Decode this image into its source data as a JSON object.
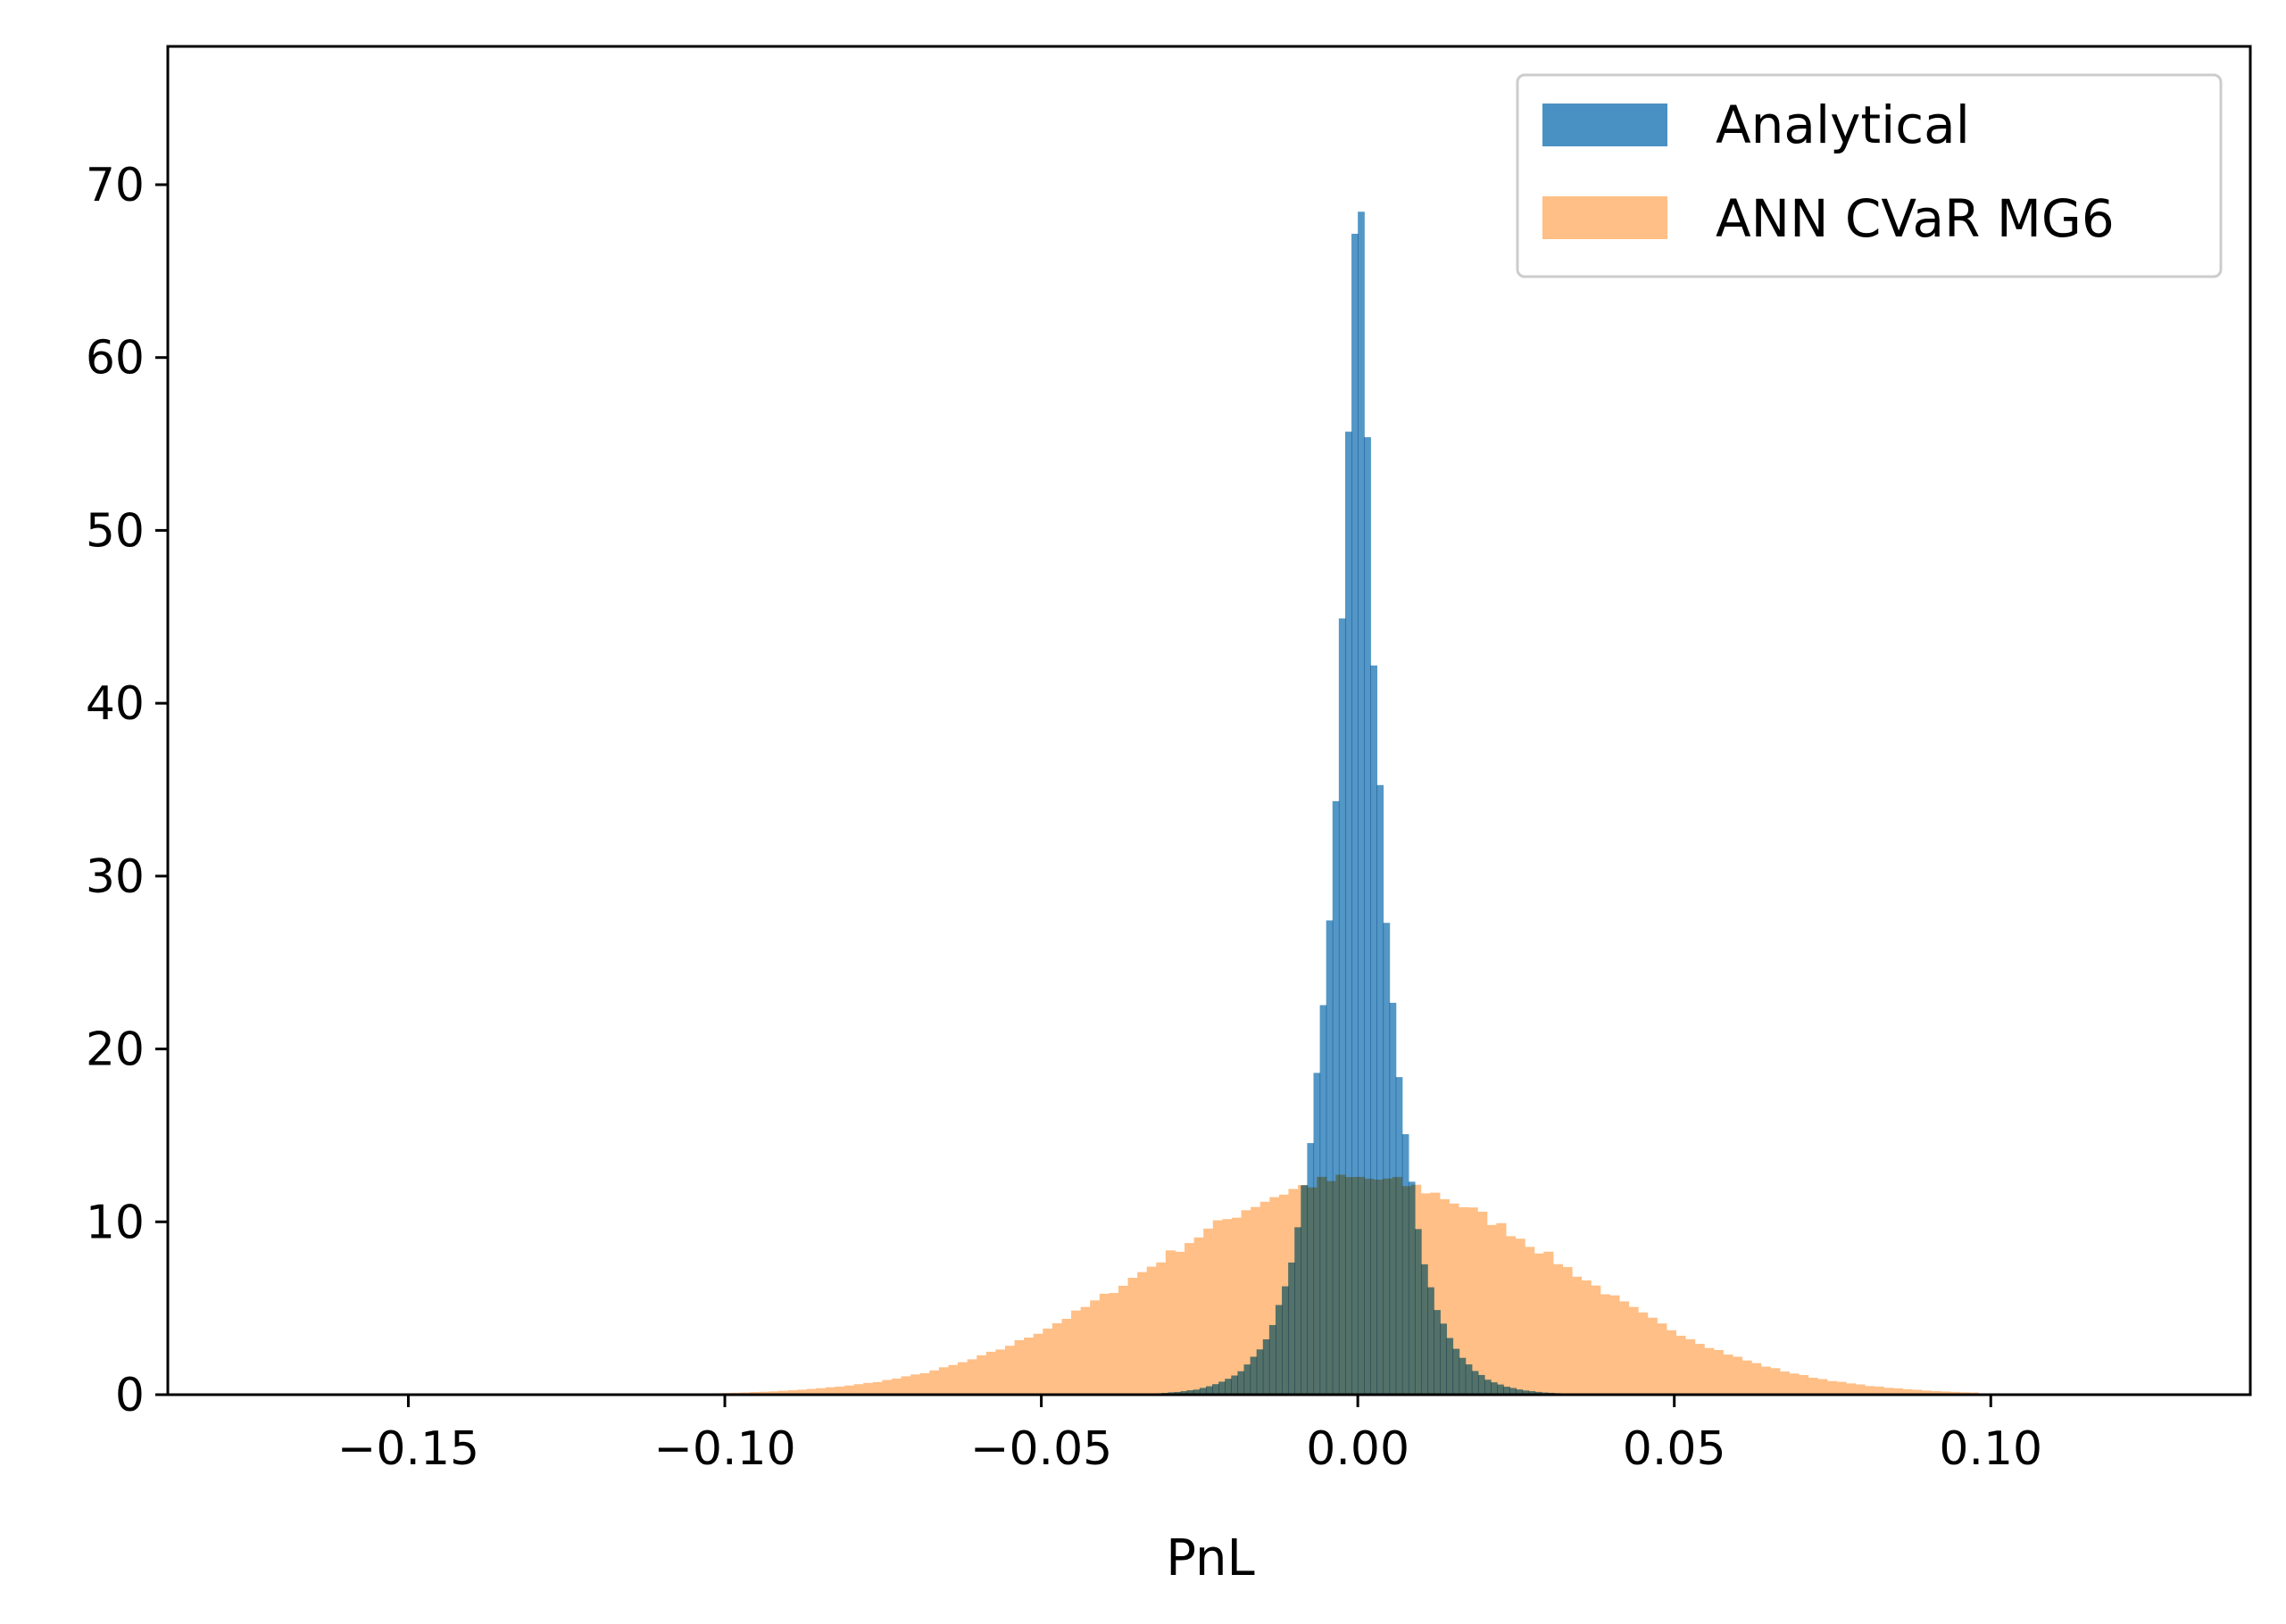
{
  "chart_data": {
    "type": "bar",
    "xlabel": "PnL",
    "ylabel": "",
    "xlim": [
      -0.188,
      0.141
    ],
    "ylim": [
      0,
      78
    ],
    "legend_position": "top-right",
    "grid": false,
    "x_ticks": [
      {
        "value": -0.15,
        "label": "−0.15"
      },
      {
        "value": -0.1,
        "label": "−0.10"
      },
      {
        "value": -0.05,
        "label": "−0.05"
      },
      {
        "value": 0.0,
        "label": "0.00"
      },
      {
        "value": 0.05,
        "label": "0.05"
      },
      {
        "value": 0.1,
        "label": "0.10"
      }
    ],
    "y_ticks": [
      {
        "value": 0,
        "label": "0"
      },
      {
        "value": 10,
        "label": "10"
      },
      {
        "value": 20,
        "label": "20"
      },
      {
        "value": 30,
        "label": "30"
      },
      {
        "value": 40,
        "label": "40"
      },
      {
        "value": 50,
        "label": "50"
      },
      {
        "value": 60,
        "label": "60"
      },
      {
        "value": 70,
        "label": "70"
      }
    ],
    "series": [
      {
        "name": "ANN CVaR MG6",
        "color": "#ffbf86",
        "distribution": {
          "mean": 0.0,
          "std": 0.032,
          "peak_density": 12.5,
          "x_min": -0.102,
          "x_max": 0.098,
          "bins": 134
        }
      },
      {
        "name": "Analytical",
        "color": "#4a91c3",
        "distribution": {
          "mean": 0.0,
          "std": 0.0075,
          "peak_density": 74,
          "x_min": -0.035,
          "x_max": 0.035,
          "bins": 70
        }
      }
    ]
  }
}
